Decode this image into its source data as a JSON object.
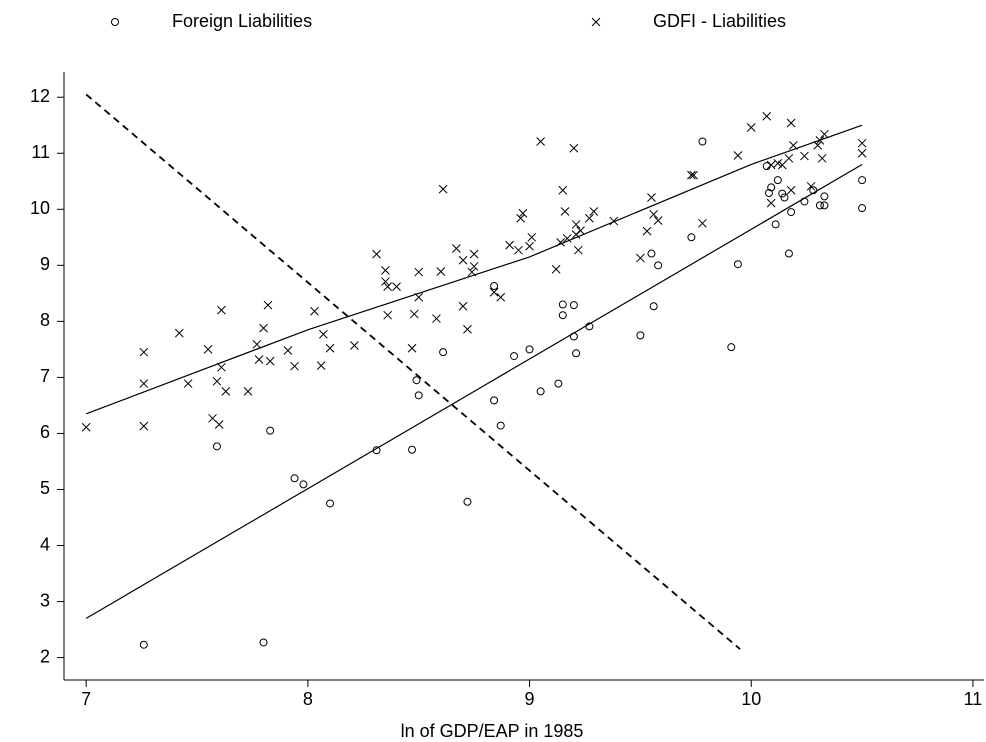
{
  "chart_data": {
    "type": "scatter",
    "xlabel": "ln of GDP/EAP in 1985",
    "xlim": [
      6.9,
      11.05
    ],
    "ylim": [
      1.6,
      12.45
    ],
    "xticks": [
      7,
      8,
      9,
      10,
      11
    ],
    "yticks": [
      2,
      3,
      4,
      5,
      6,
      7,
      8,
      9,
      10,
      11,
      12
    ],
    "series": [
      {
        "name": "Foreign Liabilities",
        "marker": "circle",
        "color": "#000000",
        "x": [
          7.26,
          7.8,
          7.59,
          7.83,
          7.94,
          7.98,
          8.1,
          8.31,
          8.47,
          8.72,
          8.49,
          8.5,
          8.61,
          8.84,
          8.87,
          8.84,
          8.93,
          9.0,
          9.05,
          9.13,
          9.15,
          9.15,
          9.2,
          9.2,
          9.21,
          9.27,
          9.5,
          9.55,
          9.58,
          9.56,
          9.73,
          9.78,
          9.91,
          9.94,
          10.08,
          10.09,
          10.11,
          10.12,
          10.14,
          10.15,
          10.17,
          10.18,
          10.24,
          10.28,
          10.31,
          10.33,
          10.33,
          10.5,
          10.5,
          10.07
        ],
        "values": [
          2.23,
          2.27,
          5.77,
          6.05,
          5.2,
          5.09,
          4.75,
          5.7,
          5.71,
          4.78,
          6.95,
          6.68,
          7.45,
          6.59,
          6.14,
          8.63,
          7.38,
          7.5,
          6.75,
          6.89,
          8.3,
          8.11,
          8.29,
          7.73,
          7.43,
          7.91,
          7.75,
          9.21,
          9.0,
          8.27,
          9.5,
          11.21,
          7.54,
          9.02,
          10.29,
          10.39,
          9.73,
          10.52,
          10.28,
          10.21,
          9.21,
          9.95,
          10.14,
          10.34,
          10.07,
          10.07,
          10.23,
          10.02,
          10.52,
          10.77
        ]
      },
      {
        "name": "GDFI - Liabilities",
        "marker": "cross",
        "color": "#000000",
        "x": [
          7.0,
          7.26,
          7.26,
          7.26,
          7.42,
          7.46,
          7.55,
          7.57,
          7.59,
          7.61,
          7.61,
          7.63,
          7.6,
          7.73,
          7.77,
          7.78,
          7.8,
          7.82,
          7.83,
          7.91,
          7.94,
          8.03,
          8.06,
          8.07,
          8.1,
          8.21,
          8.31,
          8.35,
          8.35,
          8.36,
          8.4,
          8.36,
          8.47,
          8.48,
          8.5,
          8.5,
          8.58,
          8.6,
          8.61,
          8.67,
          8.7,
          8.7,
          8.72,
          8.74,
          8.75,
          8.75,
          8.84,
          8.87,
          8.91,
          8.95,
          8.96,
          8.97,
          9.0,
          9.01,
          9.05,
          9.12,
          9.14,
          9.15,
          9.16,
          9.17,
          9.2,
          9.21,
          9.21,
          9.22,
          9.23,
          9.27,
          9.29,
          9.38,
          9.5,
          9.53,
          9.55,
          9.56,
          9.58,
          9.73,
          9.74,
          9.78,
          9.94,
          10.0,
          10.07,
          10.09,
          10.09,
          10.12,
          10.14,
          10.17,
          10.18,
          10.19,
          10.18,
          10.24,
          10.27,
          10.3,
          10.31,
          10.33,
          10.32,
          10.5,
          10.5
        ],
        "values": [
          6.11,
          7.45,
          6.89,
          6.13,
          7.79,
          6.89,
          7.5,
          6.27,
          6.93,
          8.2,
          7.18,
          6.75,
          6.16,
          6.75,
          7.59,
          7.32,
          7.88,
          8.29,
          7.29,
          7.48,
          7.2,
          8.18,
          7.21,
          7.77,
          7.52,
          7.57,
          9.2,
          8.91,
          8.71,
          8.62,
          8.62,
          8.11,
          7.52,
          8.13,
          8.43,
          8.88,
          8.05,
          8.89,
          10.36,
          9.3,
          9.09,
          8.27,
          7.86,
          8.88,
          8.98,
          9.2,
          8.52,
          8.43,
          9.36,
          9.27,
          9.84,
          9.93,
          9.34,
          9.5,
          11.21,
          8.93,
          9.41,
          10.34,
          9.96,
          9.48,
          11.09,
          9.73,
          9.55,
          9.27,
          9.62,
          9.84,
          9.96,
          9.79,
          9.13,
          9.61,
          10.21,
          9.91,
          9.8,
          10.61,
          10.61,
          9.75,
          10.96,
          11.46,
          11.66,
          10.11,
          10.79,
          10.82,
          10.79,
          10.91,
          11.54,
          11.14,
          10.34,
          10.95,
          10.41,
          11.14,
          11.23,
          11.34,
          10.91,
          11.18,
          11.0
        ]
      }
    ],
    "lines": [
      {
        "x": [
          7,
          10.5
        ],
        "values": [
          2.7,
          10.8
        ],
        "dash": false
      },
      {
        "x": [
          7,
          8,
          9,
          10,
          10.5
        ],
        "values": [
          6.35,
          7.85,
          9.15,
          10.8,
          11.5
        ],
        "dash": false
      },
      {
        "x": [
          7,
          9.95
        ],
        "values": [
          12.05,
          2.15
        ],
        "dash": true
      }
    ]
  }
}
